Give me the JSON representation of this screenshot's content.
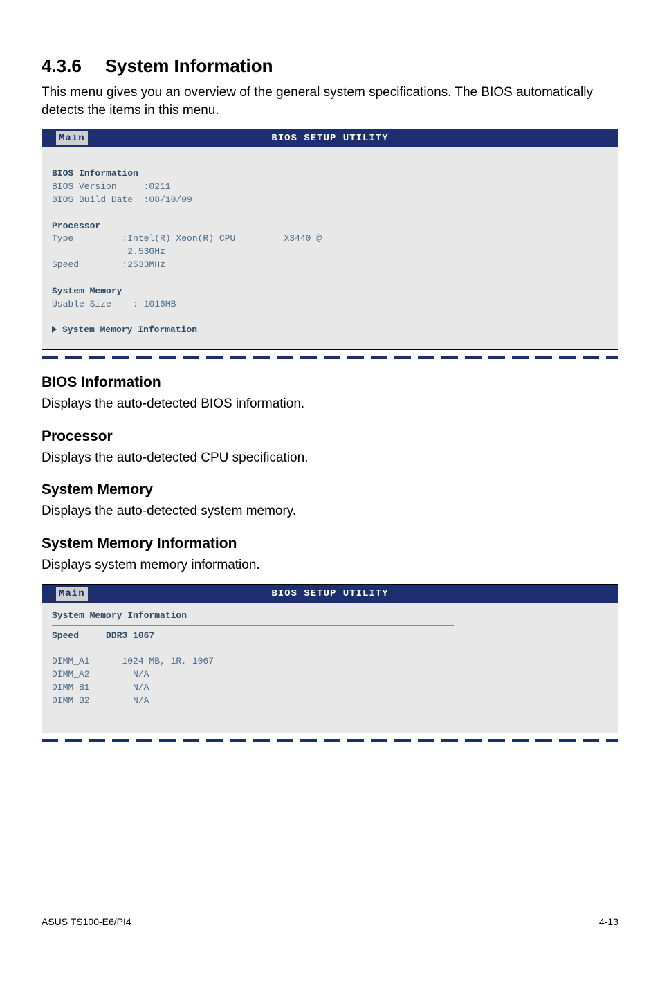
{
  "section": {
    "number": "4.3.6",
    "title": "System Information",
    "intro": "This menu gives you an overview of the general system specifications. The BIOS automatically detects the items in this menu."
  },
  "bios1": {
    "header_title": "BIOS SETUP UTILITY",
    "tab": "Main",
    "lines": {
      "bios_info_heading": "BIOS Information",
      "bios_version": "BIOS Version     :0211",
      "bios_build": "BIOS Build Date  :08/10/09",
      "proc_heading": "Processor",
      "proc_type": "Type         :Intel(R) Xeon(R) CPU         X3440 @",
      "proc_type2": "              2.53GHz",
      "proc_speed": "Speed        :2533MHz",
      "mem_heading": "System Memory",
      "usable": "Usable Size    : 1016MB",
      "link": "System Memory Information"
    }
  },
  "subs": {
    "bios_info": {
      "title": "BIOS Information",
      "text": "Displays the auto-detected BIOS information."
    },
    "processor": {
      "title": "Processor",
      "text": "Displays the auto-detected CPU specification."
    },
    "sysmem": {
      "title": "System Memory",
      "text": "Displays the auto-detected system memory."
    },
    "smi": {
      "title": "System Memory Information",
      "text": "Displays system memory information."
    }
  },
  "bios2": {
    "header_title": "BIOS SETUP UTILITY",
    "tab": "Main",
    "lines": {
      "smi_heading": "System Memory Information",
      "speed": "Speed     DDR3 1067",
      "dimm_a1": "DIMM_A1      1024 MB, 1R, 1067",
      "dimm_a2": "DIMM_A2        N/A",
      "dimm_b1": "DIMM_B1        N/A",
      "dimm_b2": "DIMM_B2        N/A"
    }
  },
  "footer": {
    "left": "ASUS TS100-E6/PI4",
    "right": "4-13"
  }
}
